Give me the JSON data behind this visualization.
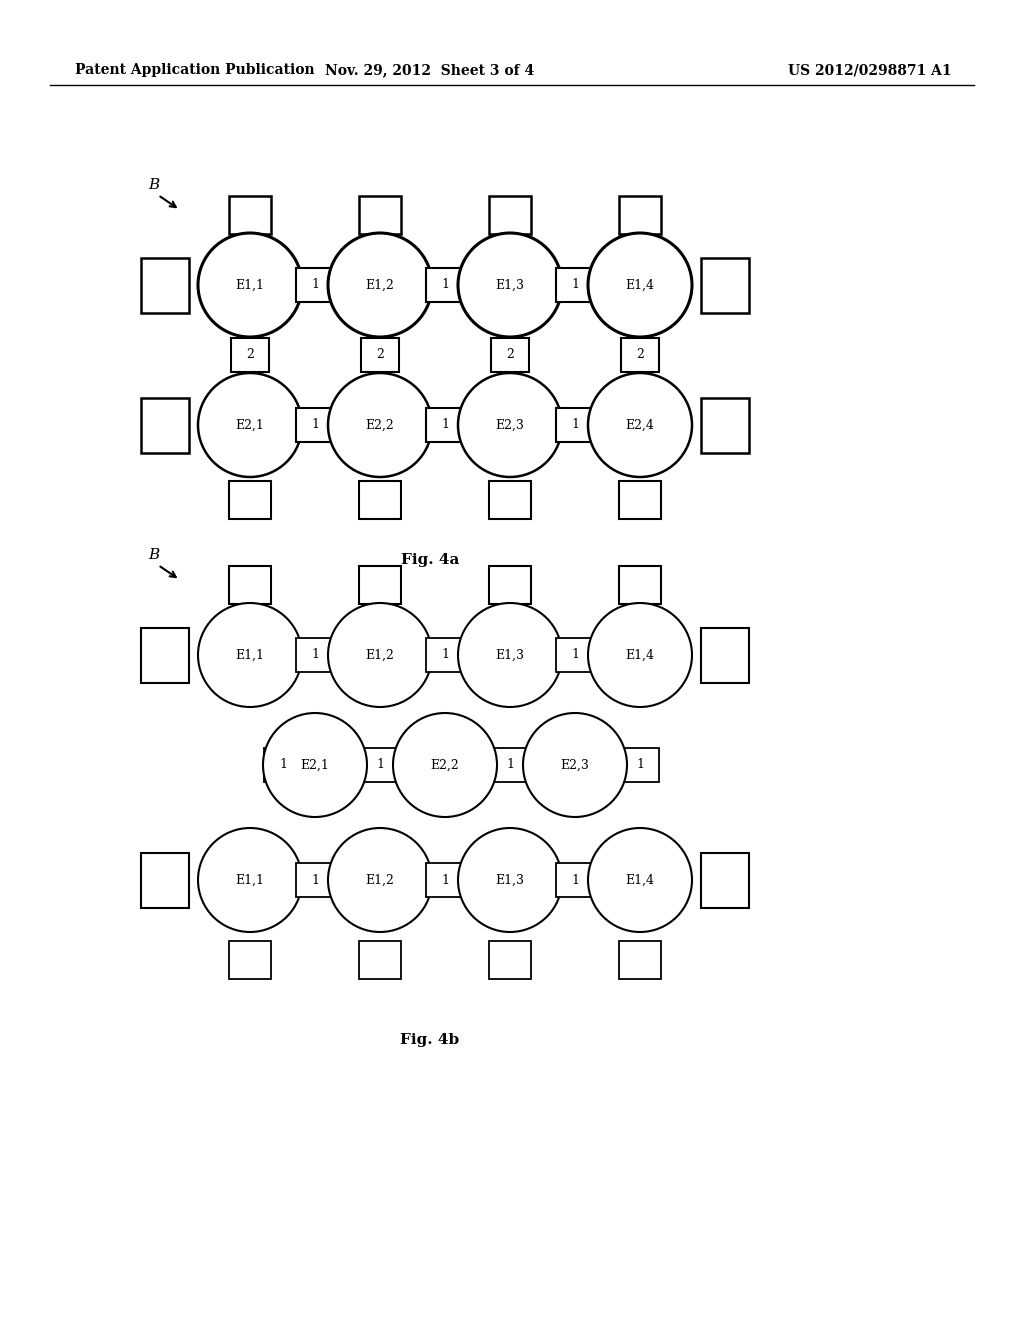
{
  "bg_color": "#ffffff",
  "header_left": "Patent Application Publication",
  "header_mid": "Nov. 29, 2012  Sheet 3 of 4",
  "header_right": "US 2012/0298871 A1",
  "fig4a_label": "Fig. 4a",
  "fig4b_label": "Fig. 4b",
  "fig4a": {
    "B_label": "B",
    "row1_circles": [
      "E1,1",
      "E1,2",
      "E1,3",
      "E1,4"
    ],
    "row2_circles": [
      "E2,1",
      "E2,2",
      "E2,3",
      "E2,4"
    ],
    "small_sq_label1": "1",
    "small_sq_label2": "2",
    "circle_lw": 2.0,
    "sq_lw": 1.5
  },
  "fig4b": {
    "B_label": "B",
    "row1_circles": [
      "E1,1",
      "E1,2",
      "E1,3",
      "E1,4"
    ],
    "row2_circles": [
      "E2,1",
      "E2,2",
      "E2,3"
    ],
    "row3_circles": [
      "E1,1",
      "E1,2",
      "E1,3",
      "E1,4"
    ],
    "small_sq_label1": "1",
    "circle_lw": 1.5,
    "sq_lw": 1.2
  }
}
